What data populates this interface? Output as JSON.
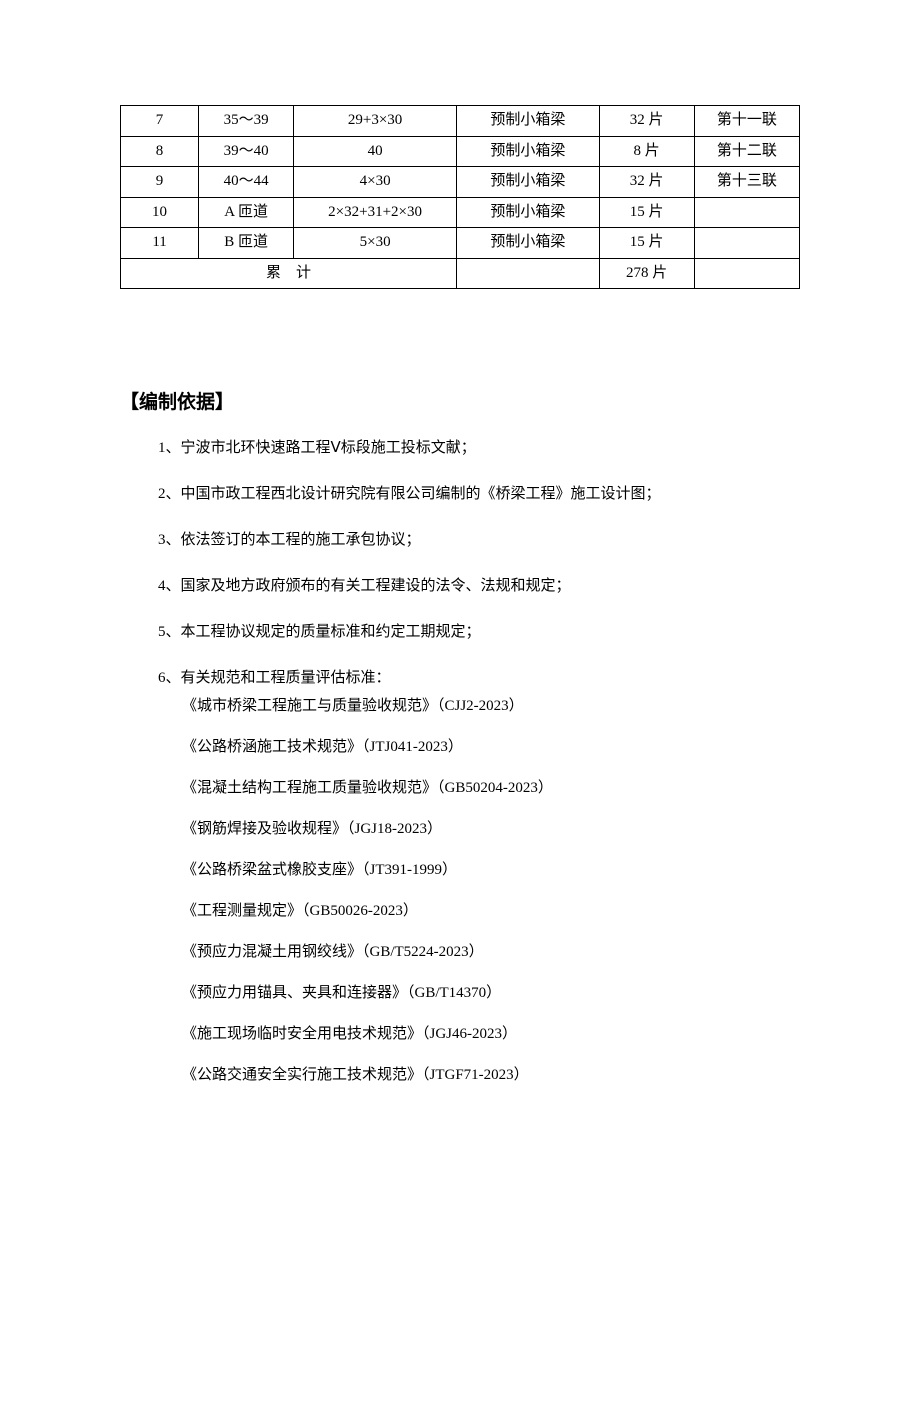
{
  "table": {
    "rows": [
      {
        "c1": "7",
        "c2": "35～39",
        "c3": "29+3×30",
        "c4": "预制小箱梁",
        "c5": "32 片",
        "c6": "第十一联"
      },
      {
        "c1": "8",
        "c2": "39～40",
        "c3": "40",
        "c4": "预制小箱梁",
        "c5": "8 片",
        "c6": "第十二联"
      },
      {
        "c1": "9",
        "c2": "40～44",
        "c3": "4×30",
        "c4": "预制小箱梁",
        "c5": "32 片",
        "c6": "第十三联"
      },
      {
        "c1": "10",
        "c2": "A 匝道",
        "c3": "2×32+31+2×30",
        "c4": "预制小箱梁",
        "c5": "15 片",
        "c6": ""
      },
      {
        "c1": "11",
        "c2": "B 匝道",
        "c3": "5×30",
        "c4": "预制小箱梁",
        "c5": "15 片",
        "c6": ""
      }
    ],
    "total": {
      "label": "累　计",
      "c4": "",
      "c5": "278 片",
      "c6": ""
    }
  },
  "heading": "【编制依据】",
  "items": [
    "1、宁波市北环快速路工程Ⅴ标段施工投标文献；",
    "2、中国市政工程西北设计研究院有限公司编制的《桥梁工程》施工设计图；",
    "3、依法签订的本工程的施工承包协议；",
    "4、国家及地方政府颁布的有关工程建设的法令、法规和规定；",
    "5、本工程协议规定的质量标准和约定工期规定；",
    "6、有关规范和工程质量评估标准："
  ],
  "standards": [
    {
      "text": "《城市桥梁工程施工与质量验收规范》（CJJ2-2023）",
      "extraGap": false
    },
    {
      "text": "《公路桥涵施工技术规范》（JTJ041-2023）",
      "extraGap": true
    },
    {
      "text": "《混凝土结构工程施工质量验收规范》（GB50204-2023）",
      "extraGap": true
    },
    {
      "text": "《钢筋焊接及验收规程》（JGJ18-2023）",
      "extraGap": false
    },
    {
      "text": "《公路桥梁盆式橡胶支座》（JT391-1999）",
      "extraGap": true
    },
    {
      "text": "《工程测量规定》（GB50026-2023）",
      "extraGap": true
    },
    {
      "text": "《预应力混凝土用钢绞线》（GB/T5224-2023）",
      "extraGap": true
    },
    {
      "text": "《预应力用锚具、夹具和连接器》（GB/T14370）",
      "extraGap": true
    },
    {
      "text": "《施工现场临时安全用电技术规范》（JGJ46-2023）",
      "extraGap": true
    },
    {
      "text": "《公路交通安全实行施工技术规范》（JTGF71-2023）",
      "extraGap": true
    }
  ]
}
